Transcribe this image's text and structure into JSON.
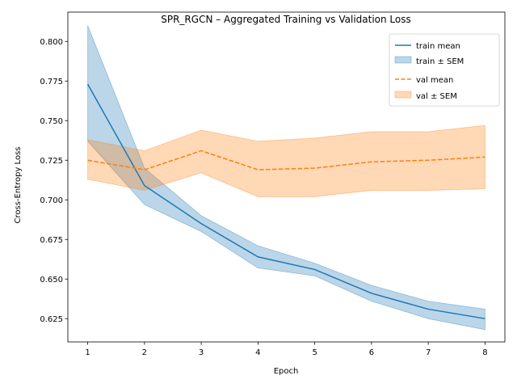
{
  "chart_data": {
    "type": "line",
    "title": "SPR_RGCN – Aggregated Training vs Validation Loss",
    "xlabel": "Epoch",
    "ylabel": "Cross-Entropy Loss",
    "x": [
      1,
      2,
      3,
      4,
      5,
      6,
      7,
      8
    ],
    "xlim": [
      0.65,
      8.35
    ],
    "ylim": [
      0.6103,
      0.8185
    ],
    "xticks": [
      1,
      2,
      3,
      4,
      5,
      6,
      7,
      8
    ],
    "yticks": [
      0.625,
      0.65,
      0.675,
      0.7,
      0.725,
      0.75,
      0.775,
      0.8
    ],
    "ytick_labels": [
      "0.625",
      "0.650",
      "0.675",
      "0.700",
      "0.725",
      "0.750",
      "0.775",
      "0.800"
    ],
    "grid": false,
    "legend_position": "top-right",
    "series": [
      {
        "name": "train mean",
        "band_name": "train ± SEM",
        "color": "#1f77b4",
        "style": "solid",
        "values": [
          0.773,
          0.709,
          0.685,
          0.664,
          0.656,
          0.641,
          0.631,
          0.625
        ],
        "lower": [
          0.737,
          0.697,
          0.68,
          0.657,
          0.652,
          0.636,
          0.625,
          0.618
        ],
        "upper": [
          0.81,
          0.72,
          0.69,
          0.671,
          0.66,
          0.646,
          0.636,
          0.631
        ]
      },
      {
        "name": "val mean",
        "band_name": "val ± SEM",
        "color": "#ff7f0e",
        "style": "dashed",
        "values": [
          0.725,
          0.719,
          0.731,
          0.719,
          0.72,
          0.724,
          0.725,
          0.727
        ],
        "lower": [
          0.713,
          0.706,
          0.717,
          0.702,
          0.702,
          0.706,
          0.706,
          0.707
        ],
        "upper": [
          0.738,
          0.731,
          0.744,
          0.737,
          0.739,
          0.743,
          0.743,
          0.747
        ]
      }
    ]
  }
}
